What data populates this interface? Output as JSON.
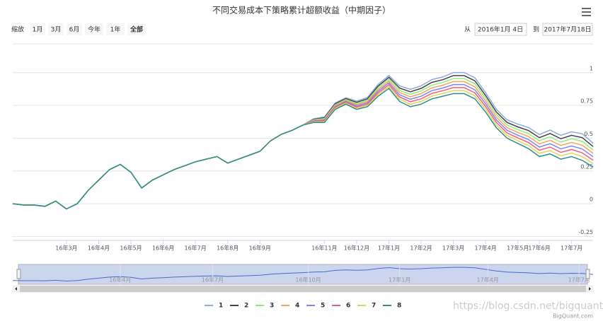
{
  "chart_data": {
    "type": "line",
    "title": "不同交易成本下策略累计超额收益（中期因子）",
    "zoom_label": "缩放",
    "range_buttons": [
      "1月",
      "3月",
      "6月",
      "今年",
      "1年",
      "全部"
    ],
    "from_label": "从",
    "from_date": "2016年1月 4日",
    "to_label": "到",
    "to_date": "2017年7月18日",
    "credits": "BigQuant.com",
    "watermark": "https://blog.csdn.net/bigquant",
    "xlim": [
      0,
      54
    ],
    "ylim": [
      -0.28,
      1.22
    ],
    "grid": true,
    "yticks": [
      {
        "value": -0.25,
        "label": "-0.25"
      },
      0,
      0.25,
      0.5,
      0.75,
      1
    ],
    "xticks": [
      {
        "value": 5,
        "label": "16年3月"
      },
      {
        "value": 8,
        "label": "16年4月"
      },
      {
        "value": 11,
        "label": "16年5月"
      },
      {
        "value": 14,
        "label": "16年6月"
      },
      {
        "value": 17,
        "label": "16年7月"
      },
      {
        "value": 20,
        "label": "16年8月"
      },
      {
        "value": 23,
        "label": "16年9月"
      },
      {
        "value": 29,
        "label": "16年11月"
      },
      {
        "value": 32,
        "label": "16年12月"
      },
      {
        "value": 35,
        "label": "17年1月"
      },
      {
        "value": 38,
        "label": "17年2月"
      },
      {
        "value": 41,
        "label": "17年3月"
      },
      {
        "value": 44,
        "label": "17年4月"
      },
      {
        "value": 47,
        "label": "17年5月"
      },
      {
        "value": 49,
        "label": "17年6月"
      },
      {
        "value": 52,
        "label": "17年7月"
      }
    ],
    "navigator_xticks": [
      {
        "value": 10,
        "label": "16年4月"
      },
      {
        "value": 18.6,
        "label": "16年7月"
      },
      {
        "value": 27.5,
        "label": "16年10月"
      },
      {
        "value": 36,
        "label": "17年1月"
      },
      {
        "value": 44.2,
        "label": "17年4月"
      },
      {
        "value": 52.7,
        "label": "17年7月"
      }
    ],
    "series": [
      {
        "name": "1",
        "color": "#8fa9e3",
        "values": [
          0,
          -0.01,
          -0.01,
          -0.02,
          0.02,
          -0.04,
          0,
          0.1,
          0.18,
          0.26,
          0.3,
          0.24,
          0.12,
          0.18,
          0.22,
          0.26,
          0.29,
          0.32,
          0.34,
          0.36,
          0.31,
          0.34,
          0.37,
          0.4,
          0.48,
          0.53,
          0.56,
          0.6,
          0.648,
          0.662,
          0.769,
          0.809,
          0.783,
          0.81,
          0.911,
          0.978,
          0.899,
          0.873,
          0.9,
          0.947,
          0.967,
          1.001,
          1.001,
          0.961,
          0.847,
          0.72,
          0.64,
          0.607,
          0.581,
          0.528,
          0.562,
          0.522,
          0.549,
          0.533,
          0.462
        ]
      },
      {
        "name": "2",
        "color": "#434348",
        "values": [
          0,
          -0.01,
          -0.01,
          -0.02,
          0.02,
          -0.04,
          0,
          0.1,
          0.18,
          0.26,
          0.3,
          0.24,
          0.12,
          0.18,
          0.22,
          0.26,
          0.29,
          0.32,
          0.34,
          0.36,
          0.31,
          0.34,
          0.37,
          0.4,
          0.48,
          0.53,
          0.56,
          0.6,
          0.644,
          0.656,
          0.762,
          0.802,
          0.774,
          0.8,
          0.898,
          0.964,
          0.882,
          0.854,
          0.88,
          0.926,
          0.946,
          0.978,
          0.978,
          0.938,
          0.826,
          0.7,
          0.62,
          0.586,
          0.558,
          0.504,
          0.536,
          0.496,
          0.522,
          0.504,
          0.436
        ]
      },
      {
        "name": "3",
        "color": "#90ed7d",
        "values": [
          0,
          -0.01,
          -0.01,
          -0.02,
          0.02,
          -0.04,
          0,
          0.1,
          0.18,
          0.26,
          0.3,
          0.24,
          0.12,
          0.18,
          0.22,
          0.26,
          0.29,
          0.32,
          0.34,
          0.36,
          0.31,
          0.34,
          0.37,
          0.4,
          0.48,
          0.53,
          0.56,
          0.6,
          0.64,
          0.65,
          0.755,
          0.795,
          0.765,
          0.79,
          0.885,
          0.95,
          0.865,
          0.835,
          0.86,
          0.905,
          0.925,
          0.955,
          0.955,
          0.915,
          0.805,
          0.68,
          0.6,
          0.565,
          0.535,
          0.48,
          0.51,
          0.47,
          0.495,
          0.475,
          0.41
        ]
      },
      {
        "name": "4",
        "color": "#f7a35c",
        "values": [
          0,
          -0.01,
          -0.01,
          -0.02,
          0.02,
          -0.04,
          0,
          0.1,
          0.18,
          0.26,
          0.3,
          0.24,
          0.12,
          0.18,
          0.22,
          0.26,
          0.29,
          0.32,
          0.34,
          0.36,
          0.31,
          0.34,
          0.37,
          0.4,
          0.48,
          0.53,
          0.56,
          0.6,
          0.636,
          0.644,
          0.748,
          0.788,
          0.756,
          0.78,
          0.872,
          0.936,
          0.848,
          0.816,
          0.84,
          0.884,
          0.904,
          0.932,
          0.932,
          0.892,
          0.784,
          0.66,
          0.58,
          0.544,
          0.512,
          0.456,
          0.484,
          0.444,
          0.468,
          0.446,
          0.384
        ]
      },
      {
        "name": "5",
        "color": "#8085e9",
        "values": [
          0,
          -0.01,
          -0.01,
          -0.02,
          0.02,
          -0.04,
          0,
          0.1,
          0.18,
          0.26,
          0.3,
          0.24,
          0.12,
          0.18,
          0.22,
          0.26,
          0.29,
          0.32,
          0.34,
          0.36,
          0.31,
          0.34,
          0.37,
          0.4,
          0.48,
          0.53,
          0.56,
          0.6,
          0.632,
          0.638,
          0.741,
          0.781,
          0.747,
          0.77,
          0.859,
          0.922,
          0.831,
          0.797,
          0.82,
          0.863,
          0.883,
          0.909,
          0.909,
          0.869,
          0.763,
          0.64,
          0.56,
          0.523,
          0.489,
          0.432,
          0.458,
          0.418,
          0.441,
          0.417,
          0.358
        ]
      },
      {
        "name": "6",
        "color": "#f15c80",
        "values": [
          0,
          -0.01,
          -0.01,
          -0.02,
          0.02,
          -0.04,
          0,
          0.1,
          0.18,
          0.26,
          0.3,
          0.24,
          0.12,
          0.18,
          0.22,
          0.26,
          0.29,
          0.32,
          0.34,
          0.36,
          0.31,
          0.34,
          0.37,
          0.4,
          0.48,
          0.53,
          0.56,
          0.6,
          0.628,
          0.632,
          0.734,
          0.774,
          0.738,
          0.76,
          0.846,
          0.908,
          0.814,
          0.778,
          0.8,
          0.842,
          0.862,
          0.886,
          0.886,
          0.846,
          0.742,
          0.62,
          0.54,
          0.502,
          0.466,
          0.408,
          0.432,
          0.392,
          0.414,
          0.388,
          0.332
        ]
      },
      {
        "name": "7",
        "color": "#e4d354",
        "values": [
          0,
          -0.01,
          -0.01,
          -0.02,
          0.02,
          -0.04,
          0,
          0.1,
          0.18,
          0.26,
          0.3,
          0.24,
          0.12,
          0.18,
          0.22,
          0.26,
          0.29,
          0.32,
          0.34,
          0.36,
          0.31,
          0.34,
          0.37,
          0.4,
          0.48,
          0.53,
          0.56,
          0.6,
          0.624,
          0.626,
          0.727,
          0.767,
          0.729,
          0.75,
          0.833,
          0.894,
          0.797,
          0.759,
          0.78,
          0.821,
          0.841,
          0.863,
          0.863,
          0.823,
          0.721,
          0.6,
          0.52,
          0.481,
          0.443,
          0.384,
          0.406,
          0.366,
          0.387,
          0.359,
          0.306
        ]
      },
      {
        "name": "8",
        "color": "#2b908f",
        "values": [
          0,
          -0.01,
          -0.01,
          -0.02,
          0.02,
          -0.04,
          0,
          0.1,
          0.18,
          0.26,
          0.3,
          0.24,
          0.12,
          0.18,
          0.22,
          0.26,
          0.29,
          0.32,
          0.34,
          0.36,
          0.31,
          0.34,
          0.37,
          0.4,
          0.48,
          0.53,
          0.56,
          0.6,
          0.62,
          0.62,
          0.72,
          0.76,
          0.72,
          0.74,
          0.82,
          0.88,
          0.78,
          0.74,
          0.76,
          0.8,
          0.82,
          0.84,
          0.84,
          0.8,
          0.7,
          0.58,
          0.5,
          0.46,
          0.42,
          0.36,
          0.38,
          0.34,
          0.36,
          0.33,
          0.28
        ]
      }
    ]
  }
}
